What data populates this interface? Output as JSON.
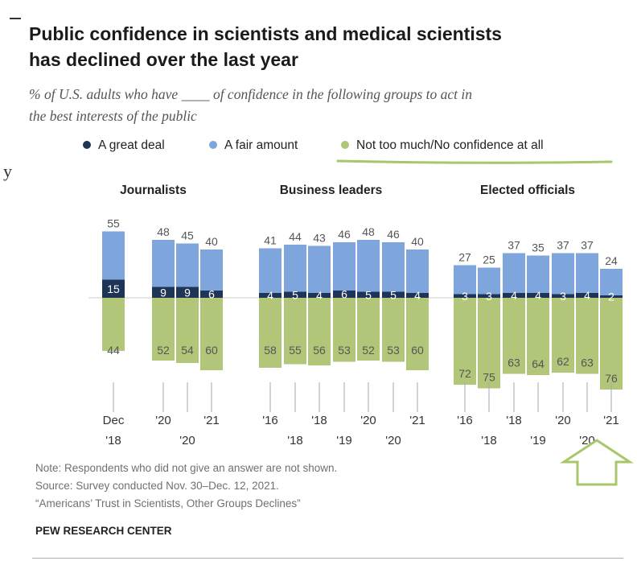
{
  "title_line1": "Public confidence in scientists and medical scientists",
  "title_line2": "has declined over the last year",
  "subtitle_line1": "% of U.S. adults who have ____ of confidence in the following groups to act in",
  "subtitle_line2": "the best interests of the public",
  "stray_text": "y",
  "colors": {
    "great_deal": "#1f3558",
    "fair_amount": "#7ea6dc",
    "not_too_much": "#b2c679",
    "label_dark": "#555555",
    "label_light": "#ffffff",
    "annotation": "#a8c66c"
  },
  "chart_data": {
    "type": "bar",
    "subtype": "diverging stacked bar",
    "series": [
      {
        "name": "A great deal",
        "key": "great_deal"
      },
      {
        "name": "A fair amount",
        "key": "fair_amount"
      },
      {
        "name": "Not too much/No confidence at all",
        "key": "not_too_much"
      }
    ],
    "panels": [
      {
        "title": "Journalists",
        "bars": [
          {
            "great_deal": 15,
            "fair_amount": 55,
            "not_too_much": 44,
            "tick1": "Dec",
            "tick2": "'18"
          },
          {
            "great_deal": 9,
            "fair_amount": 48,
            "not_too_much": 52,
            "tick1": "'20",
            "tick2": ""
          },
          {
            "great_deal": 9,
            "fair_amount": 45,
            "not_too_much": 54,
            "tick1": "",
            "tick2": "'20"
          },
          {
            "great_deal": 6,
            "fair_amount": 40,
            "not_too_much": 60,
            "tick1": "'21",
            "tick2": ""
          }
        ]
      },
      {
        "title": "Business leaders",
        "bars": [
          {
            "great_deal": 4,
            "fair_amount": 41,
            "not_too_much": 58,
            "tick1": "'16",
            "tick2": ""
          },
          {
            "great_deal": 5,
            "fair_amount": 44,
            "not_too_much": 55,
            "tick1": "",
            "tick2": "'18"
          },
          {
            "great_deal": 4,
            "fair_amount": 43,
            "not_too_much": 56,
            "tick1": "'18",
            "tick2": ""
          },
          {
            "great_deal": 6,
            "fair_amount": 46,
            "not_too_much": 53,
            "tick1": "",
            "tick2": "'19"
          },
          {
            "great_deal": 5,
            "fair_amount": 48,
            "not_too_much": 52,
            "tick1": "'20",
            "tick2": ""
          },
          {
            "great_deal": 5,
            "fair_amount": 46,
            "not_too_much": 53,
            "tick1": "",
            "tick2": "'20"
          },
          {
            "great_deal": 4,
            "fair_amount": 40,
            "not_too_much": 60,
            "tick1": "'21",
            "tick2": ""
          }
        ]
      },
      {
        "title": "Elected officials",
        "bars": [
          {
            "great_deal": 3,
            "fair_amount": 27,
            "not_too_much": 72,
            "tick1": "'16",
            "tick2": ""
          },
          {
            "great_deal": 3,
            "fair_amount": 25,
            "not_too_much": 75,
            "tick1": "",
            "tick2": "'18"
          },
          {
            "great_deal": 4,
            "fair_amount": 37,
            "not_too_much": 63,
            "tick1": "'18",
            "tick2": ""
          },
          {
            "great_deal": 4,
            "fair_amount": 35,
            "not_too_much": 64,
            "tick1": "",
            "tick2": "'19"
          },
          {
            "great_deal": 3,
            "fair_amount": 37,
            "not_too_much": 62,
            "tick1": "'20",
            "tick2": ""
          },
          {
            "great_deal": 4,
            "fair_amount": 37,
            "not_too_much": 63,
            "tick1": "",
            "tick2": "'20"
          },
          {
            "great_deal": 2,
            "fair_amount": 24,
            "not_too_much": 76,
            "tick1": "'21",
            "tick2": ""
          }
        ]
      }
    ],
    "annotations": [
      "underline under 'Not too much/No confidence at all' legend entry",
      "upward arrow below Elected officials '21 bar"
    ]
  },
  "notes": {
    "line1": "Note: Respondents who did not give an answer are not shown.",
    "line2": "Source: Survey conducted Nov. 30–Dec. 12, 2021.",
    "line3": "“Americans’ Trust in Scientists, Other Groups Declines”"
  },
  "brand": "PEW RESEARCH CENTER"
}
